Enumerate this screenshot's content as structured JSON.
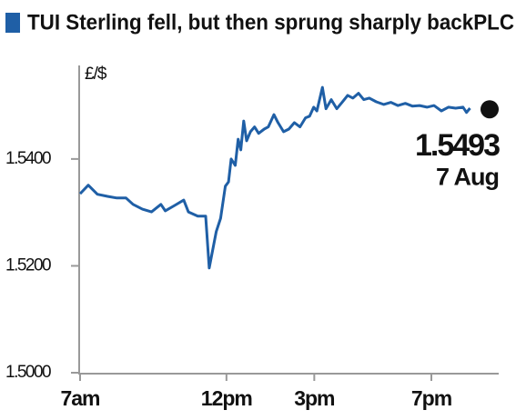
{
  "chart_data": {
    "type": "line",
    "title": "TUI Sterling fell, but then sprung sharply backPLC",
    "y_label": "£/$",
    "x": [
      7.0,
      7.28,
      7.59,
      7.94,
      8.26,
      8.57,
      8.81,
      9.13,
      9.44,
      9.76,
      9.91,
      10.23,
      10.54,
      10.7,
      11.02,
      11.29,
      11.41,
      11.65,
      11.8,
      11.96,
      12.07,
      12.16,
      12.3,
      12.4,
      12.49,
      12.59,
      12.69,
      12.82,
      12.96,
      13.1,
      13.29,
      13.43,
      13.62,
      13.76,
      13.95,
      14.13,
      14.32,
      14.51,
      14.7,
      14.84,
      14.98,
      15.09,
      15.28,
      15.4,
      15.58,
      15.77,
      15.95,
      16.14,
      16.32,
      16.51,
      16.69,
      16.88,
      17.12,
      17.37,
      17.62,
      17.86,
      18.11,
      18.35,
      18.6,
      18.85,
      19.09,
      19.34,
      19.58,
      19.83,
      20.08,
      20.2,
      20.32
    ],
    "series": [
      {
        "name": "TUI Sterling",
        "color": "#1f5fa6",
        "values": [
          1.5335,
          1.5351,
          1.5334,
          1.533,
          1.5327,
          1.5327,
          1.5315,
          1.5306,
          1.5301,
          1.5315,
          1.5303,
          1.5313,
          1.5323,
          1.5301,
          1.5293,
          1.5293,
          1.5196,
          1.5264,
          1.5289,
          1.5349,
          1.5357,
          1.54,
          1.5388,
          1.5437,
          1.5417,
          1.5471,
          1.5434,
          1.5451,
          1.546,
          1.5448,
          1.5456,
          1.546,
          1.5483,
          1.5468,
          1.5451,
          1.5456,
          1.5468,
          1.546,
          1.5477,
          1.548,
          1.5497,
          1.549,
          1.5534,
          1.5494,
          1.5511,
          1.5494,
          1.5506,
          1.5519,
          1.5514,
          1.5523,
          1.5511,
          1.5514,
          1.5507,
          1.5502,
          1.5506,
          1.55,
          1.5504,
          1.5499,
          1.55,
          1.5497,
          1.55,
          1.549,
          1.5497,
          1.5495,
          1.5497,
          1.5487,
          1.5495
        ]
      }
    ],
    "xlim": [
      7,
      21.3
    ],
    "xticks": [
      {
        "value": 7,
        "label": "7am"
      },
      {
        "value": 12,
        "label": "12pm"
      },
      {
        "value": 15,
        "label": "3pm"
      },
      {
        "value": 19,
        "label": "7pm"
      }
    ],
    "ylim": [
      1.5,
      1.5575
    ],
    "yticks": [
      {
        "value": 1.5,
        "label": "1.5000"
      },
      {
        "value": 1.52,
        "label": "1.5200"
      },
      {
        "value": 1.54,
        "label": "1.5400"
      }
    ],
    "last_value": {
      "value": 1.5493,
      "label": "1.5493"
    },
    "last_date": "7 Aug",
    "marker_color": "#111111"
  }
}
